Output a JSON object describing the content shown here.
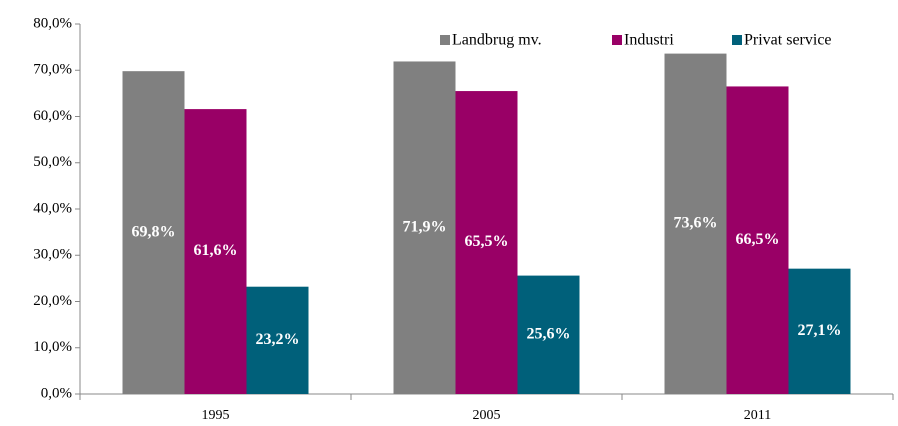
{
  "chart_data": {
    "type": "bar",
    "categories": [
      "1995",
      "2005",
      "2011"
    ],
    "series": [
      {
        "name": "Landbrug mv.",
        "color": "#808080",
        "values": [
          69.8,
          71.9,
          73.6
        ],
        "value_labels": [
          "69,8%",
          "71,9%",
          "73,6%"
        ]
      },
      {
        "name": "Industri",
        "color": "#990066",
        "values": [
          61.6,
          65.5,
          66.5
        ],
        "value_labels": [
          "61,6%",
          "65,5%",
          "66,5%"
        ]
      },
      {
        "name": "Privat service",
        "color": "#00607a",
        "values": [
          23.2,
          25.6,
          27.1
        ],
        "value_labels": [
          "23,2%",
          "25,6%",
          "27,1%"
        ]
      }
    ],
    "ylim": [
      0,
      80
    ],
    "yticks": [
      {
        "value": 0,
        "label": "0,0%"
      },
      {
        "value": 10,
        "label": "10,0%"
      },
      {
        "value": 20,
        "label": "20,0%"
      },
      {
        "value": 30,
        "label": "30,0%"
      },
      {
        "value": 40,
        "label": "40,0%"
      },
      {
        "value": 50,
        "label": "50,0%"
      },
      {
        "value": 60,
        "label": "60,0%"
      },
      {
        "value": 70,
        "label": "70,0%"
      },
      {
        "value": 80,
        "label": "80,0%"
      }
    ],
    "grid": false,
    "legend": "top-right"
  }
}
